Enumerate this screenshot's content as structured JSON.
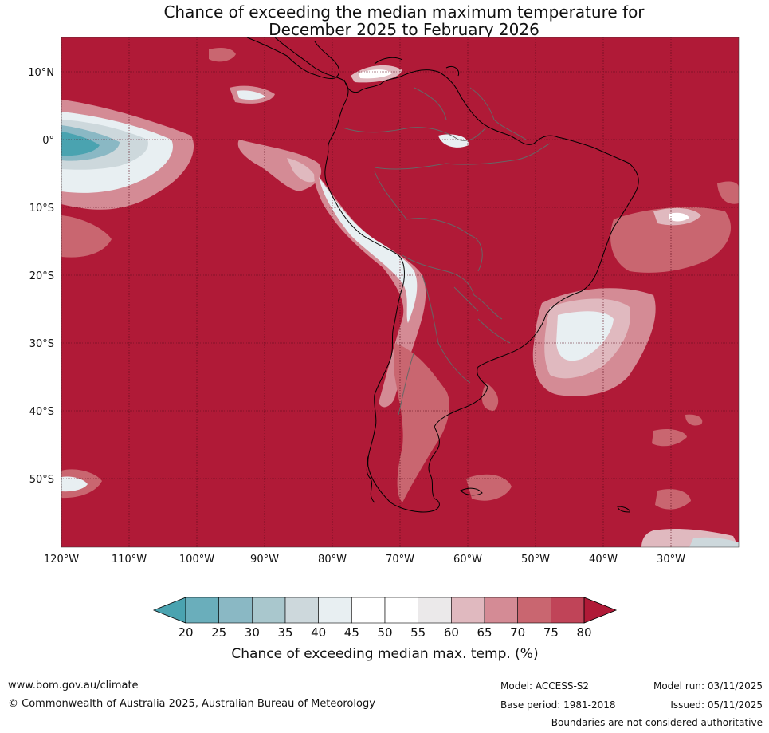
{
  "title": {
    "line1": "Chance of exceeding the median maximum temperature for",
    "line2": "December 2025 to February 2026"
  },
  "map": {
    "region": "South America",
    "background_color": "#b01a37",
    "lat_labels": [
      "10°N",
      "0°",
      "10°S",
      "20°S",
      "30°S",
      "40°S",
      "50°S"
    ],
    "lon_labels": [
      "120°W",
      "110°W",
      "100°W",
      "90°W",
      "80°W",
      "70°W",
      "60°W",
      "50°W",
      "40°W",
      "30°W"
    ]
  },
  "colorbar": {
    "labels": [
      "20",
      "25",
      "30",
      "35",
      "40",
      "45",
      "50",
      "55",
      "60",
      "65",
      "70",
      "75",
      "80"
    ],
    "colors": [
      "#4aa3b0",
      "#6aaebb",
      "#8ab8c4",
      "#a9c7cd",
      "#cdd8dc",
      "#e8eff2",
      "#ffffff",
      "#ffffff",
      "#ebe9ea",
      "#e0b9bf",
      "#d48b95",
      "#c96670",
      "#c04458",
      "#b01a37"
    ],
    "title": "Chance of exceeding median max. temp. (%)"
  },
  "footer": {
    "website": "www.bom.gov.au/climate",
    "copyright": "© Commonwealth of Australia 2025, Australian Bureau of Meteorology",
    "model": "Model: ACCESS-S2",
    "base_period": "Base period: 1981-2018",
    "model_run": "Model run: 03/11/2025",
    "issued": "Issued: 05/11/2025",
    "disclaimer": "Boundaries are not considered authoritative"
  }
}
